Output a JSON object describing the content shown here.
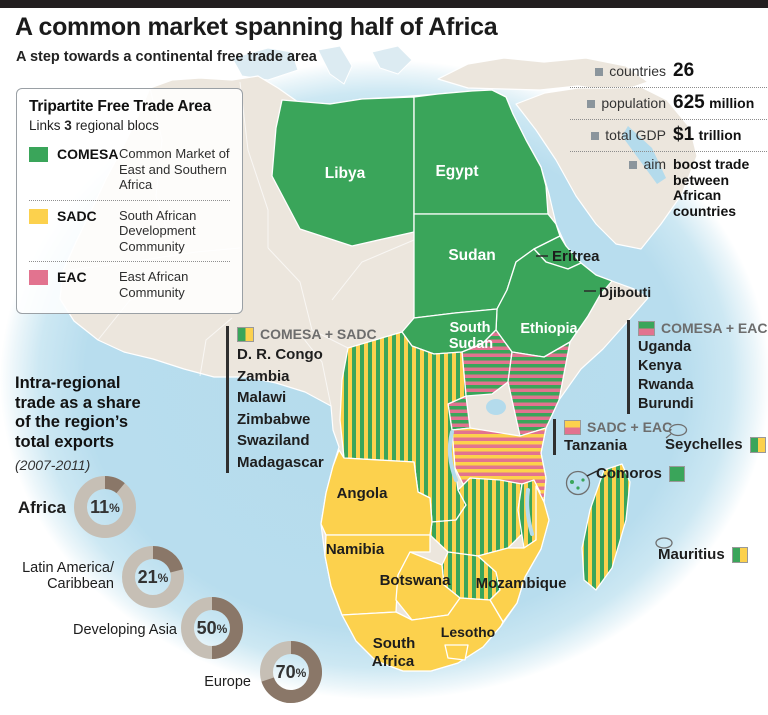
{
  "header": {
    "title": "A common market spanning half of Africa",
    "subtitle": "A step towards a continental free trade area"
  },
  "legend": {
    "title": "Tripartite Free Trade Area",
    "links_prefix": "Links",
    "links_bold": "3",
    "links_suffix": "regional blocs",
    "entries": [
      {
        "abbr": "COMESA",
        "desc": "Common Market of East and Southern Africa"
      },
      {
        "abbr": "SADC",
        "desc": "South African Development Community"
      },
      {
        "abbr": "EAC",
        "desc": "East African Community"
      }
    ]
  },
  "stats": {
    "rows": [
      {
        "label": "countries",
        "value": "26",
        "suffix": ""
      },
      {
        "label": "population",
        "value": "625",
        "suffix": "million"
      },
      {
        "label": "total GDP",
        "value": "$1",
        "suffix": "trillion"
      },
      {
        "label": "aim",
        "value_lines": [
          "boost trade",
          "between",
          "African",
          "countries"
        ]
      }
    ]
  },
  "annotations": {
    "comesa_sadc": {
      "title": "COMESA + SADC",
      "items": [
        "D. R. Congo",
        "Zambia",
        "Malawi",
        "Zimbabwe",
        "Swaziland",
        "Madagascar"
      ]
    },
    "comesa_eac": {
      "title": "COMESA + EAC",
      "items": [
        "Uganda",
        "Kenya",
        "Rwanda",
        "Burundi"
      ]
    },
    "sadc_eac": {
      "title": "SADC + EAC",
      "items": [
        "Tanzania"
      ]
    },
    "islands": [
      {
        "name": "Seychelles",
        "membership": "COMESA + SADC"
      },
      {
        "name": "Comoros",
        "membership": "COMESA"
      },
      {
        "name": "Mauritius",
        "membership": "COMESA + SADC"
      }
    ]
  },
  "map": {
    "labels": {
      "libya": "Libya",
      "egypt": "Egypt",
      "sudan": "Sudan",
      "eritrea": "Eritrea",
      "djibouti": "Djibouti",
      "south_sudan_line1": "South",
      "south_sudan_line2": "Sudan",
      "ethiopia": "Ethiopia",
      "angola": "Angola",
      "namibia": "Namibia",
      "botswana": "Botswana",
      "mozambique": "Mozambique",
      "south_africa_line1": "South",
      "south_africa_line2": "Africa",
      "lesotho": "Lesotho"
    }
  },
  "chart_data": {
    "type": "donut",
    "title": "Intra-regional trade as a share of the region's total exports",
    "title_lines": [
      "Intra-regional",
      "trade as a share",
      "of the region’s",
      "total exports"
    ],
    "subtitle": "(2007-2011)",
    "unit": "%",
    "categories": [
      "Africa",
      "Latin America/Caribbean",
      "Developing Asia",
      "Europe"
    ],
    "series": [
      {
        "label": "Africa",
        "label_lines": [
          "Africa"
        ],
        "value": 11
      },
      {
        "label": "Latin America/Caribbean",
        "label_lines": [
          "Latin America/",
          "Caribbean"
        ],
        "value": 21
      },
      {
        "label": "Developing Asia",
        "label_lines": [
          "Developing Asia"
        ],
        "value": 50
      },
      {
        "label": "Europe",
        "label_lines": [
          "Europe"
        ],
        "value": 70
      }
    ],
    "value_range": [
      0,
      100
    ],
    "segment_start": "12 o'clock, clockwise"
  },
  "colors": {
    "green": "#3aa55a",
    "yellow": "#fcd14d",
    "pink": "#e2738f",
    "ocean": "#b4dbec",
    "land": "#ece6dd",
    "donut_segment": "#8a7768",
    "donut_ring": "#c6bfb5",
    "top_bar": "#231f20"
  }
}
